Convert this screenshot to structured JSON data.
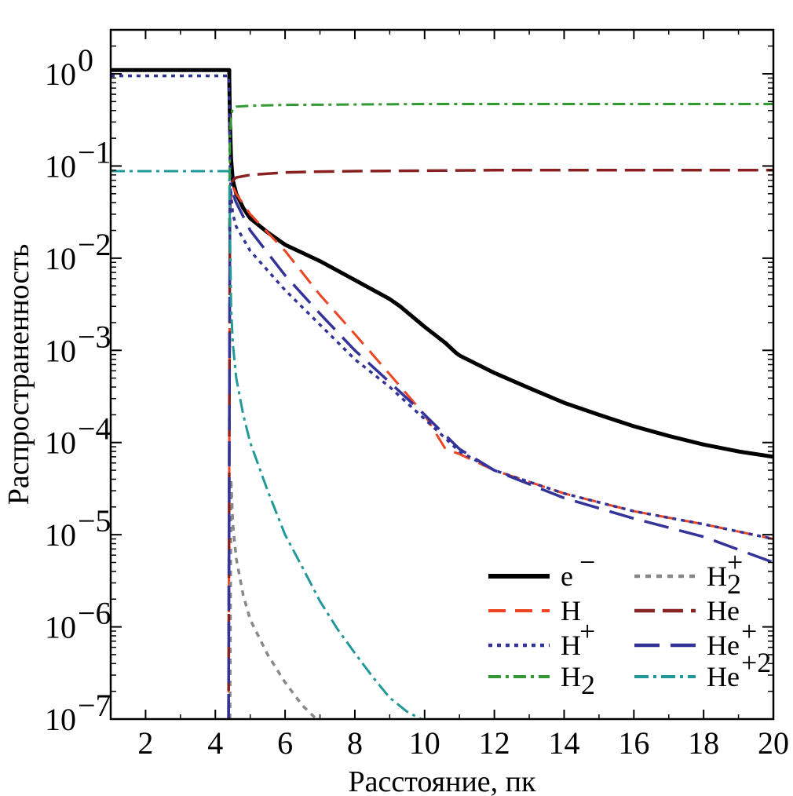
{
  "chart_data": {
    "type": "line",
    "xlabel": "Расстояние, пк",
    "ylabel": "Распространенность",
    "xlim": [
      1,
      20
    ],
    "ylim": [
      1e-07,
      3
    ],
    "yscale": "log",
    "grid": false,
    "legend_position": "bottom-right",
    "xticks": [
      2,
      4,
      6,
      8,
      10,
      12,
      14,
      16,
      18,
      20
    ],
    "yticks": [
      {
        "value": 1,
        "base": "10",
        "exp": "0"
      },
      {
        "value": 0.1,
        "base": "10",
        "exp": "−1"
      },
      {
        "value": 0.01,
        "base": "10",
        "exp": "−2"
      },
      {
        "value": 0.001,
        "base": "10",
        "exp": "−3"
      },
      {
        "value": 0.0001,
        "base": "10",
        "exp": "−4"
      },
      {
        "value": 1e-05,
        "base": "10",
        "exp": "−5"
      },
      {
        "value": 1e-06,
        "base": "10",
        "exp": "−6"
      },
      {
        "value": 1e-07,
        "base": "10",
        "exp": "−7"
      }
    ],
    "series": [
      {
        "name": "e⁻",
        "base": "e",
        "sup": "−",
        "sub": "",
        "color": "#000000",
        "dash": "",
        "width": 5,
        "x": [
          1,
          4.4,
          4.4,
          4.42,
          4.45,
          4.5,
          4.6,
          4.8,
          5.0,
          5.5,
          6,
          7,
          8,
          9,
          9.3,
          10,
          10.6,
          10.9,
          11,
          12,
          13,
          14,
          15,
          16,
          17,
          18,
          19,
          20
        ],
        "y": [
          1.1,
          1.1,
          0.9,
          0.3,
          0.12,
          0.07,
          0.05,
          0.035,
          0.027,
          0.019,
          0.014,
          0.0093,
          0.0058,
          0.0036,
          0.003,
          0.0018,
          0.0012,
          0.00094,
          0.00088,
          0.00057,
          0.00039,
          0.00027,
          0.0002,
          0.00015,
          0.000118,
          9.5e-05,
          8e-05,
          7e-05
        ]
      },
      {
        "name": "H",
        "base": "H",
        "sup": "",
        "sub": "",
        "color": "#ee4422",
        "dash": "22,12",
        "width": 3,
        "x": [
          4.38,
          4.42,
          4.45,
          4.5,
          4.6,
          5,
          6,
          7,
          8,
          9,
          10,
          10.6,
          11,
          12,
          14,
          16,
          18,
          20
        ],
        "y": [
          1e-07,
          0.03,
          0.05,
          0.06,
          0.05,
          0.03,
          0.012,
          0.004,
          0.0015,
          0.00055,
          0.0002,
          8.5e-05,
          7.5e-05,
          5e-05,
          2.8e-05,
          1.8e-05,
          1.3e-05,
          9e-06
        ]
      },
      {
        "name": "H⁺",
        "base": "H",
        "sup": "+",
        "sub": "",
        "color": "#333399",
        "dash": "5,6",
        "width": 3.5,
        "x": [
          1,
          4.38,
          4.4,
          4.42,
          4.45,
          4.5,
          4.6,
          5,
          6,
          7,
          8,
          9,
          10,
          11,
          12,
          14,
          16,
          18,
          20
        ],
        "y": [
          0.95,
          0.95,
          0.5,
          0.1,
          0.05,
          0.03,
          0.022,
          0.012,
          0.0045,
          0.0019,
          0.0008,
          0.0004,
          0.00018,
          8e-05,
          5e-05,
          2.8e-05,
          1.8e-05,
          1.3e-05,
          9e-06
        ]
      },
      {
        "name": "H₂",
        "base": "H",
        "sup": "",
        "sub": "2",
        "color": "#339933",
        "dash": "16,6,4,6",
        "width": 3,
        "x": [
          4.4,
          4.42,
          4.45,
          4.5,
          4.6,
          5,
          6,
          8,
          10,
          12,
          14,
          16,
          18,
          20
        ],
        "y": [
          0.02,
          0.2,
          0.35,
          0.42,
          0.44,
          0.45,
          0.46,
          0.465,
          0.47,
          0.47,
          0.47,
          0.47,
          0.47,
          0.47
        ]
      },
      {
        "name": "H₂⁺",
        "base": "H",
        "sup": "+",
        "sub": "2",
        "color": "#888888",
        "dash": "7,7",
        "width": 3.5,
        "x": [
          4.42,
          4.45,
          4.5,
          4.6,
          4.8,
          5.0,
          5.5,
          6.0,
          6.5,
          6.9
        ],
        "y": [
          1e-07,
          4e-05,
          1.32e-05,
          5.5e-06,
          2.2e-06,
          1.2e-06,
          5e-07,
          2.5e-07,
          1.4e-07,
          1e-07
        ]
      },
      {
        "name": "He",
        "base": "He",
        "sup": "",
        "sub": "",
        "color": "#882222",
        "dash": "26,10",
        "width": 3.5,
        "x": [
          4.38,
          4.42,
          4.45,
          4.5,
          4.6,
          5,
          6,
          7,
          8,
          10,
          12,
          14,
          16,
          18,
          20
        ],
        "y": [
          1e-07,
          0.05,
          0.065,
          0.07,
          0.075,
          0.08,
          0.085,
          0.087,
          0.088,
          0.089,
          0.09,
          0.09,
          0.09,
          0.09,
          0.09
        ]
      },
      {
        "name": "He⁺",
        "base": "He",
        "sup": "+",
        "sub": "",
        "color": "#333399",
        "dash": "32,14",
        "width": 3.5,
        "x": [
          4.38,
          4.42,
          4.45,
          4.5,
          4.6,
          5,
          6,
          7,
          8,
          9,
          10,
          11,
          12,
          14,
          16,
          18,
          20
        ],
        "y": [
          1e-07,
          0.05,
          0.06,
          0.05,
          0.04,
          0.02,
          0.0065,
          0.0025,
          0.001,
          0.00045,
          0.0002,
          8.5e-05,
          5e-05,
          2.5e-05,
          1.5e-05,
          9.5e-06,
          5e-06
        ]
      },
      {
        "name": "He⁺²",
        "base": "He",
        "sup": "+2",
        "sub": "",
        "color": "#229999",
        "dash": "18,6,4,6",
        "width": 3,
        "x": [
          1,
          4.4,
          4.42,
          4.45,
          4.5,
          4.6,
          4.8,
          5,
          5.5,
          6,
          6.5,
          7,
          7.5,
          8,
          8.5,
          9,
          9.5,
          9.9
        ],
        "y": [
          0.088,
          0.088,
          0.02,
          0.003,
          0.0012,
          0.0005,
          0.0002,
          0.0001,
          3e-05,
          1e-05,
          4.4e-06,
          1.9e-06,
          9.5e-07,
          5.2e-07,
          2.9e-07,
          1.7e-07,
          1.2e-07,
          1e-07
        ]
      }
    ]
  }
}
